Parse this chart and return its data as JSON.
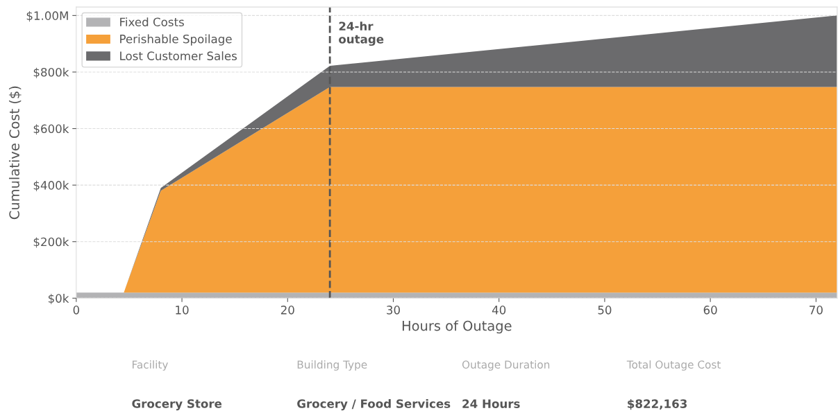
{
  "chart_data": {
    "type": "area",
    "stacked": true,
    "xlabel": "Hours of Outage",
    "ylabel": "Cumulative Cost ($)",
    "x": [
      0,
      4.5,
      8,
      24,
      72
    ],
    "series": [
      {
        "name": "Fixed Costs",
        "color": "#b3b3b5",
        "values": [
          20000,
          20000,
          20000,
          20000,
          20000
        ]
      },
      {
        "name": "Perishable Spoilage",
        "color": "#f5a03a",
        "values": [
          0,
          0,
          360000,
          727000,
          727000
        ]
      },
      {
        "name": "Lost Customer Sales",
        "color": "#6b6b6d",
        "values": [
          0,
          0,
          10000,
          75000,
          253000
        ]
      }
    ],
    "xlim": [
      0,
      72
    ],
    "xticks": [
      0,
      10,
      20,
      30,
      40,
      50,
      60,
      70
    ],
    "ylim": [
      0,
      1030000
    ],
    "yticks": [
      {
        "value": 0,
        "label": "$0k"
      },
      {
        "value": 200000,
        "label": "$200k"
      },
      {
        "value": 400000,
        "label": "$400k"
      },
      {
        "value": 600000,
        "label": "$600k"
      },
      {
        "value": 800000,
        "label": "$800k"
      },
      {
        "value": 1000000,
        "label": "$1.00M"
      }
    ],
    "ref_lines": [
      {
        "axis": "x",
        "value": 24,
        "label": "24-hr\noutage",
        "color": "#555555",
        "line_style": "dashed"
      }
    ],
    "grid": "y",
    "legend": "top left",
    "annotations": [
      "Facility",
      "Building Type",
      "Outage Duration",
      "Total Outage Cost",
      "Grocery Store",
      "Grocery / Food Services",
      "24 Hours",
      "$822,163"
    ]
  }
}
